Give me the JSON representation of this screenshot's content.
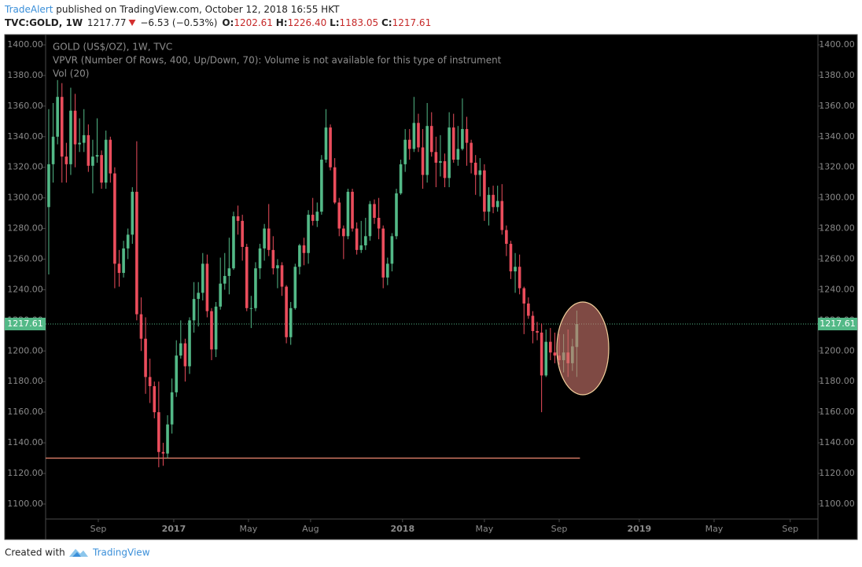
{
  "header": {
    "author": "TradeAlert",
    "published": "published on TradingView.com, October 12, 2018 16:55 HKT",
    "symbol": "TVC:GOLD, 1W",
    "last": "1217.77",
    "change": "−6.53 (−0.53%)",
    "open_label": "O:",
    "open": "1202.61",
    "high_label": "H:",
    "high": "1226.40",
    "low_label": "L:",
    "low": "1183.05",
    "close_label": "C:",
    "close": "1217.61"
  },
  "chart_data": {
    "type": "candlestick",
    "title": "GOLD (US$/OZ), 1W, TVC",
    "subtitle": "VPVR (Number Of Rows, 400, Up/Down, 70): Volume is not available for this type of instrument",
    "indicator": "Vol (20)",
    "up_color": "#53b987",
    "down_color": "#eb4d5c",
    "open": [
      1294,
      1322,
      1340,
      1366,
      1327,
      1322,
      1357,
      1335,
      1336,
      1341,
      1321,
      1327,
      1328,
      1310,
      1338,
      1316,
      1257,
      1251,
      1267,
      1276,
      1304,
      1224,
      1208,
      1183,
      1177,
      1160,
      1134,
      1133,
      1152,
      1173,
      1197,
      1205,
      1190,
      1220,
      1234,
      1238,
      1257,
      1226,
      1201,
      1229,
      1244,
      1249,
      1254,
      1288,
      1285,
      1268,
      1228,
      1228,
      1254,
      1267,
      1280,
      1266,
      1254,
      1256,
      1242,
      1209,
      1228,
      1255,
      1269,
      1264,
      1289,
      1285,
      1291,
      1325,
      1346,
      1320,
      1297,
      1280,
      1275,
      1304,
      1280,
      1266,
      1269,
      1275,
      1296,
      1287,
      1280,
      1248,
      1257,
      1275,
      1303,
      1322,
      1338,
      1332,
      1349,
      1333,
      1315,
      1347,
      1330,
      1323,
      1324,
      1313,
      1346,
      1325,
      1332,
      1345,
      1336,
      1323,
      1315,
      1318,
      1291,
      1302,
      1294,
      1298,
      1279,
      1270,
      1252,
      1255,
      1241,
      1231,
      1223,
      1213,
      1212,
      1184,
      1206,
      1199,
      1197,
      1194,
      1199,
      1192,
      1202.61
    ],
    "high": [
      1358,
      1362,
      1377,
      1375,
      1336,
      1372,
      1368,
      1352,
      1358,
      1348,
      1338,
      1352,
      1331,
      1344,
      1340,
      1320,
      1266,
      1272,
      1280,
      1307,
      1337,
      1235,
      1222,
      1195,
      1180,
      1180,
      1140,
      1158,
      1182,
      1207,
      1220,
      1208,
      1222,
      1245,
      1245,
      1264,
      1263,
      1228,
      1232,
      1261,
      1264,
      1274,
      1291,
      1295,
      1289,
      1270,
      1236,
      1258,
      1270,
      1283,
      1296,
      1275,
      1260,
      1258,
      1243,
      1232,
      1257,
      1270,
      1274,
      1292,
      1300,
      1297,
      1328,
      1358,
      1348,
      1326,
      1300,
      1282,
      1306,
      1306,
      1284,
      1285,
      1287,
      1298,
      1299,
      1300,
      1282,
      1261,
      1277,
      1306,
      1325,
      1345,
      1345,
      1366,
      1355,
      1345,
      1362,
      1356,
      1340,
      1341,
      1329,
      1356,
      1355,
      1347,
      1365,
      1353,
      1338,
      1328,
      1326,
      1322,
      1307,
      1308,
      1308,
      1309,
      1282,
      1272,
      1264,
      1263,
      1242,
      1235,
      1226,
      1219,
      1218,
      1214,
      1215,
      1212,
      1211,
      1211,
      1214,
      1208,
      1226.4
    ],
    "low": [
      1250,
      1310,
      1335,
      1310,
      1310,
      1315,
      1320,
      1330,
      1330,
      1317,
      1303,
      1323,
      1306,
      1306,
      1310,
      1241,
      1242,
      1248,
      1260,
      1270,
      1220,
      1200,
      1172,
      1166,
      1156,
      1124,
      1125,
      1130,
      1146,
      1170,
      1195,
      1180,
      1185,
      1212,
      1216,
      1233,
      1222,
      1194,
      1196,
      1227,
      1240,
      1237,
      1253,
      1276,
      1259,
      1226,
      1215,
      1226,
      1247,
      1259,
      1262,
      1250,
      1241,
      1236,
      1205,
      1204,
      1227,
      1250,
      1256,
      1257,
      1282,
      1281,
      1289,
      1323,
      1318,
      1296,
      1275,
      1260,
      1273,
      1278,
      1263,
      1264,
      1266,
      1272,
      1283,
      1273,
      1241,
      1243,
      1252,
      1273,
      1302,
      1317,
      1325,
      1330,
      1330,
      1306,
      1310,
      1327,
      1307,
      1314,
      1307,
      1307,
      1323,
      1321,
      1331,
      1321,
      1316,
      1302,
      1301,
      1285,
      1282,
      1290,
      1291,
      1276,
      1262,
      1247,
      1238,
      1237,
      1211,
      1221,
      1205,
      1207,
      1160,
      1183,
      1194,
      1192,
      1191,
      1186,
      1183,
      1187,
      1183.05
    ],
    "close": [
      1322,
      1340,
      1366,
      1327,
      1322,
      1357,
      1335,
      1336,
      1341,
      1321,
      1327,
      1328,
      1310,
      1338,
      1316,
      1257,
      1251,
      1267,
      1276,
      1304,
      1224,
      1208,
      1183,
      1177,
      1160,
      1134,
      1133,
      1152,
      1173,
      1197,
      1205,
      1190,
      1220,
      1234,
      1238,
      1257,
      1226,
      1201,
      1229,
      1244,
      1249,
      1254,
      1288,
      1285,
      1268,
      1228,
      1228,
      1254,
      1267,
      1280,
      1266,
      1254,
      1256,
      1242,
      1209,
      1228,
      1255,
      1269,
      1264,
      1289,
      1285,
      1291,
      1325,
      1346,
      1320,
      1297,
      1280,
      1275,
      1304,
      1280,
      1266,
      1269,
      1275,
      1296,
      1287,
      1280,
      1248,
      1257,
      1275,
      1303,
      1322,
      1338,
      1332,
      1349,
      1333,
      1315,
      1347,
      1330,
      1323,
      1324,
      1313,
      1346,
      1325,
      1332,
      1345,
      1336,
      1323,
      1315,
      1318,
      1291,
      1302,
      1294,
      1298,
      1279,
      1270,
      1252,
      1255,
      1241,
      1231,
      1223,
      1213,
      1212,
      1184,
      1206,
      1199,
      1197,
      1194,
      1199,
      1192,
      1203,
      1217.61
    ],
    "xlim": [
      -0.71,
      174.8
    ],
    "xticks": [
      {
        "value": 11.26,
        "label": "Sep"
      },
      {
        "value": 28.41,
        "label": "2017"
      },
      {
        "value": 45.39,
        "label": "May"
      },
      {
        "value": 59.5,
        "label": "Aug"
      },
      {
        "value": 80.4,
        "label": "2018"
      },
      {
        "value": 99.0,
        "label": "May"
      },
      {
        "value": 116.0,
        "label": "Sep"
      },
      {
        "value": 134.2,
        "label": "2019"
      },
      {
        "value": 151.2,
        "label": "May"
      },
      {
        "value": 168.5,
        "label": "Sep"
      }
    ],
    "ylim": [
      1090.2,
      1406.7
    ],
    "yticks": [
      {
        "value": 1100,
        "label": "1100.00"
      },
      {
        "value": 1120,
        "label": "1120.00"
      },
      {
        "value": 1140,
        "label": "1140.00"
      },
      {
        "value": 1160,
        "label": "1160.00"
      },
      {
        "value": 1180,
        "label": "1180.00"
      },
      {
        "value": 1200,
        "label": "1200.00"
      },
      {
        "value": 1220,
        "label": "1220.00"
      },
      {
        "value": 1240,
        "label": "1240.00"
      },
      {
        "value": 1260,
        "label": "1260.00"
      },
      {
        "value": 1280,
        "label": "1280.00"
      },
      {
        "value": 1300,
        "label": "1300.00"
      },
      {
        "value": 1320,
        "label": "1320.00"
      },
      {
        "value": 1340,
        "label": "1340.00"
      },
      {
        "value": 1360,
        "label": "1360.00"
      },
      {
        "value": 1380,
        "label": "1380.00"
      },
      {
        "value": 1400,
        "label": "1400.00"
      }
    ],
    "last_price": 1217.61,
    "support_level": 1130,
    "support_color": "#e0806a"
  },
  "footer": {
    "text": "Created with",
    "brand": "TradingView"
  }
}
